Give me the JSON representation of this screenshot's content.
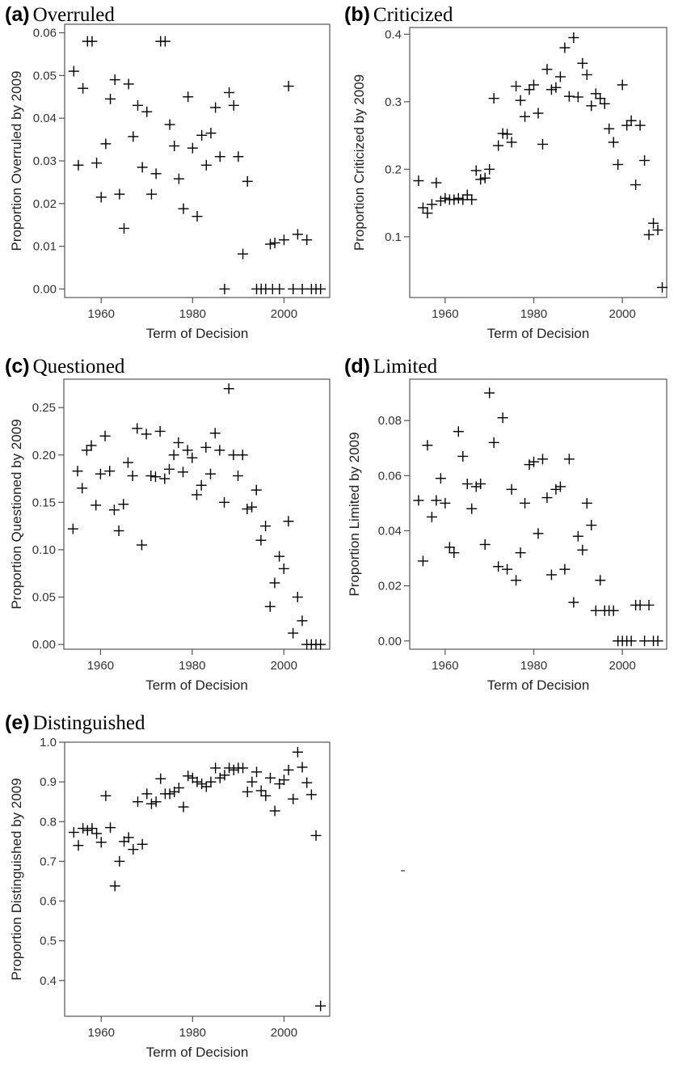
{
  "chart_data": [
    {
      "type": "scatter",
      "panel_label": "(a)",
      "title": "Overruled",
      "xlabel": "Term of Decision",
      "ylabel": "Proportion Overruled by 2009",
      "xlim": [
        1952,
        2010
      ],
      "ylim": [
        -0.002,
        0.062
      ],
      "xticks": [
        1960,
        1980,
        2000
      ],
      "yticks": [
        0.0,
        0.01,
        0.02,
        0.03,
        0.04,
        0.05,
        0.06
      ],
      "ytick_labels": [
        "0.00",
        "0.01",
        "0.02",
        "0.03",
        "0.04",
        "0.05",
        "0.06"
      ],
      "points": [
        [
          1954,
          0.051
        ],
        [
          1955,
          0.029
        ],
        [
          1956,
          0.047
        ],
        [
          1957,
          0.058
        ],
        [
          1958,
          0.058
        ],
        [
          1959,
          0.0295
        ],
        [
          1960,
          0.0215
        ],
        [
          1961,
          0.034
        ],
        [
          1962,
          0.0445
        ],
        [
          1963,
          0.049
        ],
        [
          1964,
          0.0222
        ],
        [
          1965,
          0.0142
        ],
        [
          1966,
          0.048
        ],
        [
          1967,
          0.0357
        ],
        [
          1968,
          0.043
        ],
        [
          1969,
          0.0285
        ],
        [
          1970,
          0.0415
        ],
        [
          1971,
          0.0222
        ],
        [
          1972,
          0.027
        ],
        [
          1973,
          0.058
        ],
        [
          1974,
          0.058
        ],
        [
          1975,
          0.0385
        ],
        [
          1976,
          0.0335
        ],
        [
          1977,
          0.0258
        ],
        [
          1978,
          0.0188
        ],
        [
          1979,
          0.045
        ],
        [
          1980,
          0.033
        ],
        [
          1981,
          0.017
        ],
        [
          1982,
          0.036
        ],
        [
          1983,
          0.029
        ],
        [
          1984,
          0.0365
        ],
        [
          1985,
          0.0425
        ],
        [
          1986,
          0.031
        ],
        [
          1987,
          0.0
        ],
        [
          1988,
          0.046
        ],
        [
          1989,
          0.043
        ],
        [
          1990,
          0.031
        ],
        [
          1991,
          0.0082
        ],
        [
          1992,
          0.0252
        ],
        [
          1994,
          0.0
        ],
        [
          1995,
          0.0
        ],
        [
          1996,
          0.0
        ],
        [
          1997,
          0.0105
        ],
        [
          1997.5,
          0.0
        ],
        [
          1998,
          0.0108
        ],
        [
          1999,
          0.0
        ],
        [
          2000,
          0.0115
        ],
        [
          2001,
          0.0475
        ],
        [
          2002,
          0.0
        ],
        [
          2003,
          0.0128
        ],
        [
          2004,
          0.0
        ],
        [
          2005,
          0.0115
        ],
        [
          2006,
          0.0
        ],
        [
          2007,
          0.0
        ],
        [
          2008,
          0.0
        ]
      ]
    },
    {
      "type": "scatter",
      "panel_label": "(b)",
      "title": "Criticized",
      "xlabel": "Term of Decision",
      "ylabel": "Proportion Criticized by 2009",
      "xlim": [
        1952,
        2010
      ],
      "ylim": [
        0.01,
        0.41
      ],
      "xticks": [
        1960,
        1980,
        2000
      ],
      "yticks": [
        0.1,
        0.2,
        0.3,
        0.4
      ],
      "ytick_labels": [
        "0.1",
        "0.2",
        "0.3",
        "0.4"
      ],
      "points": [
        [
          1954,
          0.183
        ],
        [
          1955,
          0.143
        ],
        [
          1956,
          0.135
        ],
        [
          1957,
          0.148
        ],
        [
          1958,
          0.18
        ],
        [
          1959,
          0.153
        ],
        [
          1960,
          0.157
        ],
        [
          1961,
          0.155
        ],
        [
          1962,
          0.155
        ],
        [
          1963,
          0.157
        ],
        [
          1964,
          0.155
        ],
        [
          1965,
          0.162
        ],
        [
          1966,
          0.155
        ],
        [
          1967,
          0.198
        ],
        [
          1968,
          0.185
        ],
        [
          1969,
          0.187
        ],
        [
          1970,
          0.2
        ],
        [
          1971,
          0.305
        ],
        [
          1972,
          0.235
        ],
        [
          1973,
          0.253
        ],
        [
          1974,
          0.252
        ],
        [
          1975,
          0.24
        ],
        [
          1976,
          0.323
        ],
        [
          1977,
          0.302
        ],
        [
          1978,
          0.278
        ],
        [
          1979,
          0.318
        ],
        [
          1980,
          0.325
        ],
        [
          1981,
          0.283
        ],
        [
          1982,
          0.237
        ],
        [
          1983,
          0.348
        ],
        [
          1984,
          0.318
        ],
        [
          1985,
          0.321
        ],
        [
          1986,
          0.337
        ],
        [
          1987,
          0.38
        ],
        [
          1988,
          0.308
        ],
        [
          1989,
          0.395
        ],
        [
          1990,
          0.307
        ],
        [
          1991,
          0.357
        ],
        [
          1992,
          0.34
        ],
        [
          1993,
          0.294
        ],
        [
          1994,
          0.312
        ],
        [
          1995,
          0.305
        ],
        [
          1996,
          0.297
        ],
        [
          1997,
          0.26
        ],
        [
          1998,
          0.24
        ],
        [
          1999,
          0.207
        ],
        [
          2000,
          0.325
        ],
        [
          2001,
          0.265
        ],
        [
          2002,
          0.272
        ],
        [
          2003,
          0.177
        ],
        [
          2004,
          0.265
        ],
        [
          2005,
          0.213
        ],
        [
          2006,
          0.103
        ],
        [
          2007,
          0.12
        ],
        [
          2008,
          0.11
        ],
        [
          2009,
          0.025
        ]
      ]
    },
    {
      "type": "scatter",
      "panel_label": "(c)",
      "title": "Questioned",
      "xlabel": "Term of Decision",
      "ylabel": "Proportion Questioned by 2009",
      "xlim": [
        1952,
        2010
      ],
      "ylim": [
        -0.005,
        0.28
      ],
      "xticks": [
        1960,
        1980,
        2000
      ],
      "yticks": [
        0.0,
        0.05,
        0.1,
        0.15,
        0.2,
        0.25
      ],
      "ytick_labels": [
        "0.00",
        "0.05",
        "0.10",
        "0.15",
        "0.20",
        "0.25"
      ],
      "points": [
        [
          1954,
          0.122
        ],
        [
          1955,
          0.183
        ],
        [
          1956,
          0.165
        ],
        [
          1957,
          0.205
        ],
        [
          1958,
          0.21
        ],
        [
          1959,
          0.147
        ],
        [
          1960,
          0.18
        ],
        [
          1961,
          0.22
        ],
        [
          1962,
          0.183
        ],
        [
          1963,
          0.142
        ],
        [
          1964,
          0.12
        ],
        [
          1965,
          0.148
        ],
        [
          1966,
          0.192
        ],
        [
          1967,
          0.178
        ],
        [
          1968,
          0.228
        ],
        [
          1969,
          0.105
        ],
        [
          1970,
          0.222
        ],
        [
          1971,
          0.178
        ],
        [
          1972,
          0.177
        ],
        [
          1973,
          0.225
        ],
        [
          1974,
          0.175
        ],
        [
          1975,
          0.185
        ],
        [
          1976,
          0.2
        ],
        [
          1977,
          0.213
        ],
        [
          1978,
          0.182
        ],
        [
          1979,
          0.205
        ],
        [
          1980,
          0.197
        ],
        [
          1981,
          0.158
        ],
        [
          1982,
          0.168
        ],
        [
          1983,
          0.208
        ],
        [
          1984,
          0.18
        ],
        [
          1985,
          0.223
        ],
        [
          1986,
          0.205
        ],
        [
          1987,
          0.15
        ],
        [
          1988,
          0.27
        ],
        [
          1989,
          0.2
        ],
        [
          1990,
          0.178
        ],
        [
          1991,
          0.2
        ],
        [
          1992,
          0.143
        ],
        [
          1993,
          0.145
        ],
        [
          1994,
          0.163
        ],
        [
          1995,
          0.11
        ],
        [
          1996,
          0.125
        ],
        [
          1997,
          0.04
        ],
        [
          1998,
          0.065
        ],
        [
          1999,
          0.093
        ],
        [
          2000,
          0.08
        ],
        [
          2001,
          0.13
        ],
        [
          2002,
          0.012
        ],
        [
          2003,
          0.05
        ],
        [
          2004,
          0.025
        ],
        [
          2005,
          0.0
        ],
        [
          2006,
          0.0
        ],
        [
          2007,
          0.0
        ],
        [
          2008,
          0.0
        ]
      ]
    },
    {
      "type": "scatter",
      "panel_label": "(d)",
      "title": "Limited",
      "xlabel": "Term of Decision",
      "ylabel": "Proportion Limited by 2009",
      "xlim": [
        1952,
        2010
      ],
      "ylim": [
        -0.003,
        0.095
      ],
      "xticks": [
        1960,
        1980,
        2000
      ],
      "yticks": [
        0.0,
        0.02,
        0.04,
        0.06,
        0.08
      ],
      "ytick_labels": [
        "0.00",
        "0.02",
        "0.04",
        "0.06",
        "0.08"
      ],
      "points": [
        [
          1954,
          0.051
        ],
        [
          1955,
          0.029
        ],
        [
          1956,
          0.071
        ],
        [
          1957,
          0.045
        ],
        [
          1958,
          0.051
        ],
        [
          1959,
          0.059
        ],
        [
          1960,
          0.05
        ],
        [
          1961,
          0.034
        ],
        [
          1962,
          0.032
        ],
        [
          1963,
          0.076
        ],
        [
          1964,
          0.067
        ],
        [
          1965,
          0.057
        ],
        [
          1966,
          0.048
        ],
        [
          1967,
          0.056
        ],
        [
          1968,
          0.057
        ],
        [
          1969,
          0.035
        ],
        [
          1970,
          0.09
        ],
        [
          1971,
          0.072
        ],
        [
          1972,
          0.027
        ],
        [
          1973,
          0.081
        ],
        [
          1974,
          0.026
        ],
        [
          1975,
          0.055
        ],
        [
          1976,
          0.022
        ],
        [
          1977,
          0.032
        ],
        [
          1978,
          0.05
        ],
        [
          1979,
          0.064
        ],
        [
          1980,
          0.065
        ],
        [
          1981,
          0.039
        ],
        [
          1982,
          0.066
        ],
        [
          1983,
          0.052
        ],
        [
          1984,
          0.024
        ],
        [
          1985,
          0.055
        ],
        [
          1986,
          0.056
        ],
        [
          1987,
          0.026
        ],
        [
          1988,
          0.066
        ],
        [
          1989,
          0.014
        ],
        [
          1990,
          0.038
        ],
        [
          1991,
          0.033
        ],
        [
          1992,
          0.05
        ],
        [
          1993,
          0.042
        ],
        [
          1994,
          0.011
        ],
        [
          1995,
          0.022
        ],
        [
          1996,
          0.011
        ],
        [
          1997,
          0.011
        ],
        [
          1998,
          0.011
        ],
        [
          1999,
          0.0
        ],
        [
          2000,
          0.0
        ],
        [
          2001,
          0.0
        ],
        [
          2002,
          0.0
        ],
        [
          2003,
          0.013
        ],
        [
          2004,
          0.013
        ],
        [
          2005,
          0.0
        ],
        [
          2006,
          0.013
        ],
        [
          2007,
          0.0
        ],
        [
          2008,
          0.0
        ]
      ]
    },
    {
      "type": "scatter",
      "panel_label": "(e)",
      "title": "Distinguished",
      "xlabel": "Term of Decision",
      "ylabel": "Proportion Distinguished by 2009",
      "xlim": [
        1952,
        2010
      ],
      "ylim": [
        0.31,
        1.0
      ],
      "xticks": [
        1960,
        1980,
        2000
      ],
      "yticks": [
        0.4,
        0.5,
        0.6,
        0.7,
        0.8,
        0.9,
        1.0
      ],
      "ytick_labels": [
        "0.4",
        "0.5",
        "0.6",
        "0.7",
        "0.8",
        "0.9",
        "1.0"
      ],
      "points": [
        [
          1954,
          0.773
        ],
        [
          1955,
          0.74
        ],
        [
          1956,
          0.783
        ],
        [
          1957,
          0.778
        ],
        [
          1958,
          0.783
        ],
        [
          1959,
          0.77
        ],
        [
          1960,
          0.748
        ],
        [
          1961,
          0.865
        ],
        [
          1962,
          0.785
        ],
        [
          1963,
          0.638
        ],
        [
          1964,
          0.7
        ],
        [
          1965,
          0.75
        ],
        [
          1966,
          0.76
        ],
        [
          1967,
          0.73
        ],
        [
          1968,
          0.85
        ],
        [
          1969,
          0.743
        ],
        [
          1970,
          0.87
        ],
        [
          1971,
          0.845
        ],
        [
          1972,
          0.85
        ],
        [
          1973,
          0.908
        ],
        [
          1974,
          0.87
        ],
        [
          1975,
          0.87
        ],
        [
          1976,
          0.875
        ],
        [
          1977,
          0.885
        ],
        [
          1978,
          0.837
        ],
        [
          1979,
          0.915
        ],
        [
          1980,
          0.91
        ],
        [
          1981,
          0.9
        ],
        [
          1982,
          0.895
        ],
        [
          1983,
          0.888
        ],
        [
          1984,
          0.9
        ],
        [
          1985,
          0.935
        ],
        [
          1986,
          0.91
        ],
        [
          1987,
          0.917
        ],
        [
          1988,
          0.935
        ],
        [
          1989,
          0.93
        ],
        [
          1990,
          0.935
        ],
        [
          1991,
          0.935
        ],
        [
          1992,
          0.875
        ],
        [
          1993,
          0.9
        ],
        [
          1994,
          0.925
        ],
        [
          1995,
          0.878
        ],
        [
          1996,
          0.865
        ],
        [
          1997,
          0.91
        ],
        [
          1998,
          0.827
        ],
        [
          1999,
          0.895
        ],
        [
          2000,
          0.905
        ],
        [
          2001,
          0.93
        ],
        [
          2002,
          0.857
        ],
        [
          2003,
          0.975
        ],
        [
          2004,
          0.937
        ],
        [
          2005,
          0.898
        ],
        [
          2006,
          0.868
        ],
        [
          2007,
          0.765
        ],
        [
          2008,
          0.336
        ]
      ]
    }
  ]
}
